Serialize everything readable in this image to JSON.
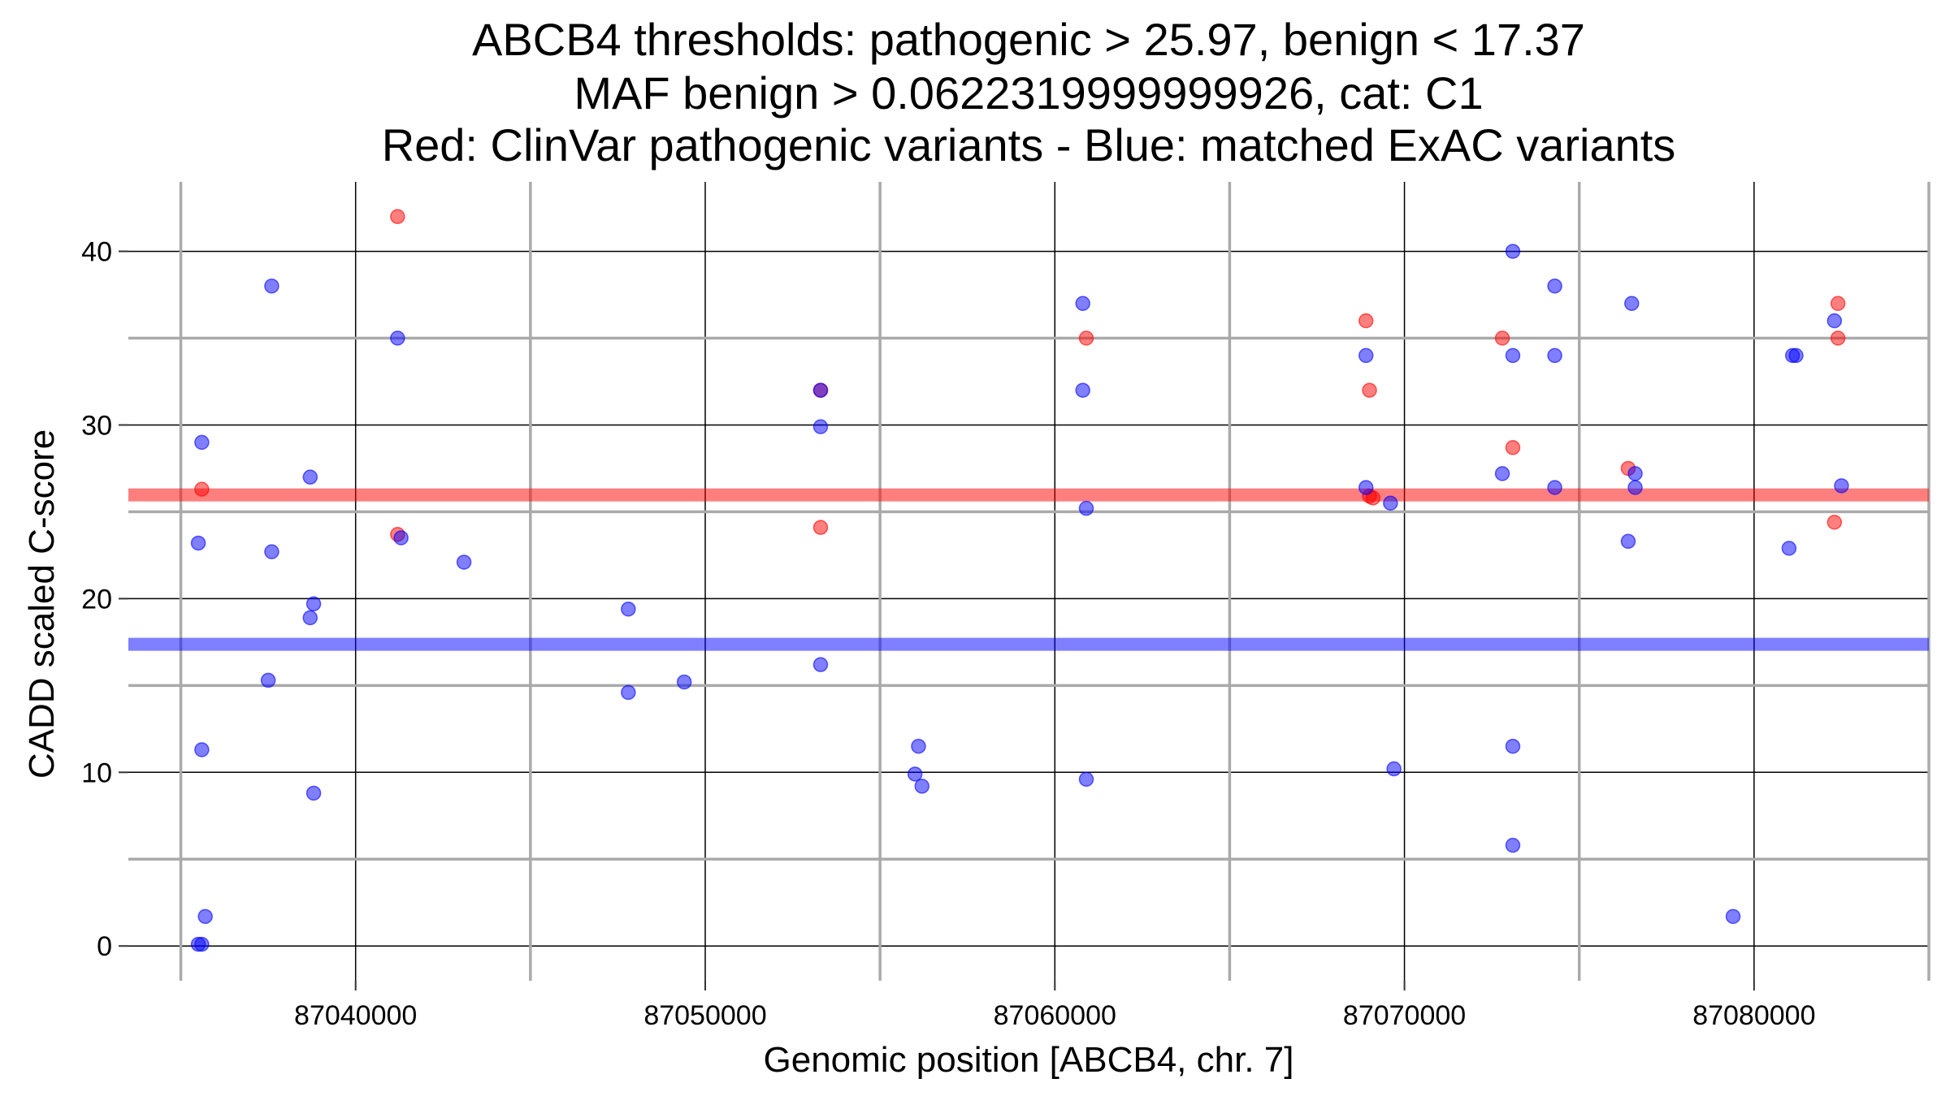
{
  "chart_data": {
    "type": "scatter",
    "title_lines": [
      "ABCB4 thresholds: pathogenic > 25.97, benign < 17.37",
      "MAF benign > 0.0622319999999926, cat: C1",
      "Red: ClinVar pathogenic variants - Blue: matched ExAC variants"
    ],
    "xlabel": "Genomic position [ABCB4, chr. 7]",
    "ylabel": "CADD scaled C-score",
    "xlim": [
      87033500,
      87085000
    ],
    "ylim": [
      -2,
      44
    ],
    "x_ticks": [
      87040000,
      87050000,
      87060000,
      87070000,
      87080000
    ],
    "x_tick_labels": [
      "87040000",
      "87050000",
      "87060000",
      "87070000",
      "87080000"
    ],
    "y_ticks": [
      0,
      10,
      20,
      30,
      40
    ],
    "y_tick_labels": [
      "0",
      "10",
      "20",
      "30",
      "40"
    ],
    "grid": true,
    "thresholds": {
      "pathogenic": 25.97,
      "benign": 17.37,
      "pathogenic_color": "#ff0000",
      "benign_color": "#0000ff"
    },
    "series": [
      {
        "color": "#ff0000",
        "points": [
          [
            87035600,
            26.3
          ],
          [
            87041200,
            42
          ],
          [
            87041200,
            23.7
          ],
          [
            87053300,
            32
          ],
          [
            87053300,
            24.1
          ],
          [
            87060900,
            35
          ],
          [
            87068900,
            36
          ],
          [
            87069000,
            32
          ],
          [
            87069000,
            25.9
          ],
          [
            87069100,
            25.8
          ],
          [
            87072800,
            35
          ],
          [
            87073100,
            28.7
          ],
          [
            87076400,
            27.5
          ],
          [
            87082400,
            37
          ],
          [
            87082400,
            35
          ],
          [
            87082300,
            24.4
          ]
        ]
      },
      {
        "color": "#0000ff",
        "points": [
          [
            87035600,
            29
          ],
          [
            87035500,
            23.2
          ],
          [
            87035600,
            11.3
          ],
          [
            87035700,
            1.7
          ],
          [
            87035500,
            0.1
          ],
          [
            87035600,
            0.1
          ],
          [
            87037600,
            38
          ],
          [
            87037600,
            22.7
          ],
          [
            87037500,
            15.3
          ],
          [
            87038700,
            27
          ],
          [
            87038800,
            19.7
          ],
          [
            87038700,
            18.9
          ],
          [
            87038800,
            8.8
          ],
          [
            87041200,
            35
          ],
          [
            87041300,
            23.5
          ],
          [
            87043100,
            22.1
          ],
          [
            87047800,
            19.4
          ],
          [
            87047800,
            14.6
          ],
          [
            87049400,
            15.2
          ],
          [
            87053300,
            32
          ],
          [
            87053300,
            29.9
          ],
          [
            87053300,
            16.2
          ],
          [
            87056100,
            11.5
          ],
          [
            87056000,
            9.9
          ],
          [
            87056200,
            9.2
          ],
          [
            87060800,
            37
          ],
          [
            87060800,
            32
          ],
          [
            87060900,
            25.2
          ],
          [
            87060900,
            9.6
          ],
          [
            87068900,
            34
          ],
          [
            87068900,
            26.4
          ],
          [
            87069600,
            25.5
          ],
          [
            87069700,
            10.2
          ],
          [
            87072800,
            27.2
          ],
          [
            87073100,
            40
          ],
          [
            87073100,
            34
          ],
          [
            87073100,
            11.5
          ],
          [
            87073100,
            5.8
          ],
          [
            87074300,
            38
          ],
          [
            87074300,
            34
          ],
          [
            87074300,
            26.4
          ],
          [
            87076500,
            37
          ],
          [
            87076600,
            27.2
          ],
          [
            87076600,
            26.4
          ],
          [
            87076400,
            23.3
          ],
          [
            87079400,
            1.7
          ],
          [
            87081000,
            22.9
          ],
          [
            87081100,
            34
          ],
          [
            87081200,
            34
          ],
          [
            87082300,
            36
          ],
          [
            87082500,
            26.5
          ]
        ]
      }
    ]
  }
}
